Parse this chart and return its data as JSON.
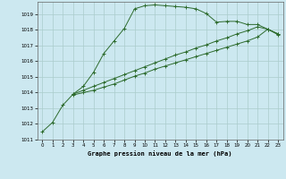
{
  "title": "Graphe pression niveau de la mer (hPa)",
  "background_color": "#cce8f0",
  "grid_color": "#aacccc",
  "line_color": "#2d6b2d",
  "xlim": [
    -0.5,
    23.5
  ],
  "ylim": [
    1011,
    1019.8
  ],
  "yticks": [
    1011,
    1012,
    1013,
    1014,
    1015,
    1016,
    1017,
    1018,
    1019
  ],
  "xticks": [
    0,
    1,
    2,
    3,
    4,
    5,
    6,
    7,
    8,
    9,
    10,
    11,
    12,
    13,
    14,
    15,
    16,
    17,
    18,
    19,
    20,
    21,
    22,
    23
  ],
  "series": [
    {
      "x": [
        0,
        1,
        2,
        3,
        4,
        5,
        6,
        7,
        8,
        9,
        10,
        11,
        12,
        13,
        14,
        15,
        16,
        17,
        18,
        19,
        20,
        21,
        22,
        23
      ],
      "y": [
        1011.5,
        1012.1,
        1013.2,
        1013.9,
        1014.4,
        1015.3,
        1016.5,
        1017.3,
        1018.1,
        1019.35,
        1019.55,
        1019.6,
        1019.55,
        1019.5,
        1019.45,
        1019.35,
        1019.05,
        1018.5,
        1018.55,
        1018.55,
        1018.35,
        1018.35,
        1018.05,
        1017.7
      ]
    },
    {
      "x": [
        3,
        4,
        5,
        6,
        7,
        8,
        9,
        10,
        11,
        12,
        13,
        14,
        15,
        16,
        17,
        18,
        19,
        20,
        21,
        22,
        23
      ],
      "y": [
        1013.9,
        1014.15,
        1014.4,
        1014.65,
        1014.9,
        1015.15,
        1015.4,
        1015.65,
        1015.9,
        1016.15,
        1016.4,
        1016.6,
        1016.85,
        1017.05,
        1017.3,
        1017.5,
        1017.75,
        1017.95,
        1018.2,
        1018.05,
        1017.75
      ]
    },
    {
      "x": [
        3,
        4,
        5,
        6,
        7,
        8,
        9,
        10,
        11,
        12,
        13,
        14,
        15,
        16,
        17,
        18,
        19,
        20,
        21,
        22,
        23
      ],
      "y": [
        1013.85,
        1014.0,
        1014.15,
        1014.35,
        1014.55,
        1014.8,
        1015.05,
        1015.25,
        1015.5,
        1015.7,
        1015.9,
        1016.1,
        1016.3,
        1016.5,
        1016.7,
        1016.9,
        1017.1,
        1017.3,
        1017.55,
        1018.05,
        1017.75
      ]
    }
  ]
}
